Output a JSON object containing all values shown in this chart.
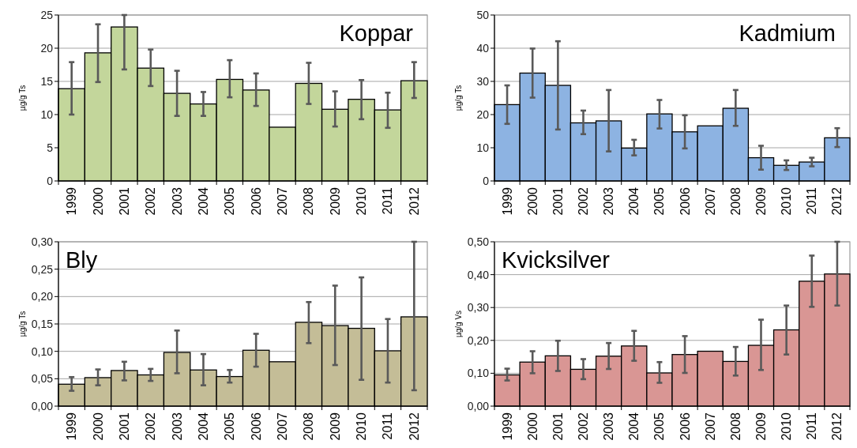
{
  "chart_data": [
    {
      "type": "bar",
      "title": "Koppar",
      "ylabel": "µg/g Ts",
      "categories": [
        "1999",
        "2000",
        "2001",
        "2002",
        "2003",
        "2004",
        "2005",
        "2006",
        "2007",
        "2008",
        "2009",
        "2010",
        "2011",
        "2012"
      ],
      "values": [
        13.9,
        19.3,
        23.2,
        17.0,
        13.2,
        11.6,
        15.3,
        13.7,
        8.1,
        14.7,
        10.8,
        12.3,
        10.7,
        15.1
      ],
      "errors": [
        [
          10.0,
          17.9
        ],
        [
          14.9,
          23.6
        ],
        [
          16.8,
          25
        ],
        [
          14.3,
          19.8
        ],
        [
          9.8,
          16.6
        ],
        [
          9.8,
          13.4
        ],
        [
          12.6,
          18.2
        ],
        [
          11.3,
          16.2
        ],
        null,
        [
          11.6,
          17.8
        ],
        [
          8.2,
          13.5
        ],
        [
          9.3,
          15.2
        ],
        [
          8.0,
          13.3
        ],
        [
          12.5,
          17.9
        ]
      ],
      "color": "#c3d69b",
      "ylim": [
        0,
        25
      ],
      "yticks": [
        0,
        5,
        10,
        15,
        20,
        25
      ],
      "grid": "y"
    },
    {
      "type": "bar",
      "title": "Kadmium",
      "ylabel": "µg/g Ts",
      "categories": [
        "1999",
        "2000",
        "2001",
        "2002",
        "2003",
        "2004",
        "2005",
        "2006",
        "2007",
        "2008",
        "2009",
        "2010",
        "2011",
        "2012"
      ],
      "values": [
        23.0,
        32.5,
        28.8,
        17.5,
        18.1,
        9.9,
        20.2,
        14.8,
        16.6,
        21.9,
        7.0,
        4.7,
        5.7,
        13.0
      ],
      "errors": [
        [
          17.2,
          28.8
        ],
        [
          25.1,
          39.9
        ],
        [
          15.5,
          42.1
        ],
        [
          14.1,
          21.2
        ],
        [
          8.9,
          27.4
        ],
        [
          7.7,
          12.4
        ],
        [
          15.8,
          24.4
        ],
        [
          9.8,
          19.8
        ],
        null,
        [
          16.6,
          27.4
        ],
        [
          3.4,
          10.6
        ],
        [
          3.3,
          6.2
        ],
        [
          4.4,
          7.0
        ],
        [
          10.2,
          15.9
        ]
      ],
      "color": "#8db3e2",
      "ylim": [
        0,
        50
      ],
      "yticks": [
        0,
        10,
        20,
        30,
        40,
        50
      ],
      "grid": "y"
    },
    {
      "type": "bar",
      "title": "Bly",
      "ylabel": "µg/g Ts",
      "categories": [
        "1999",
        "2000",
        "2001",
        "2002",
        "2003",
        "2004",
        "2005",
        "2006",
        "2007",
        "2008",
        "2009",
        "2010",
        "2011",
        "2012"
      ],
      "values": [
        0.04,
        0.052,
        0.065,
        0.057,
        0.098,
        0.066,
        0.054,
        0.102,
        0.081,
        0.153,
        0.147,
        0.142,
        0.101,
        0.163
      ],
      "errors": [
        [
          0.028,
          0.053
        ],
        [
          0.038,
          0.067
        ],
        [
          0.047,
          0.081
        ],
        [
          0.046,
          0.068
        ],
        [
          0.06,
          0.138
        ],
        [
          0.038,
          0.095
        ],
        [
          0.043,
          0.066
        ],
        [
          0.072,
          0.132
        ],
        null,
        [
          0.115,
          0.19
        ],
        [
          0.075,
          0.22
        ],
        [
          0.048,
          0.235
        ],
        [
          0.043,
          0.159
        ],
        [
          0.029,
          0.3
        ]
      ],
      "color": "#c4bd97",
      "ylim": [
        0,
        0.3
      ],
      "yticks": [
        {
          "value": 0,
          "label": "0,00"
        },
        {
          "value": 0.05,
          "label": "0,05"
        },
        {
          "value": 0.1,
          "label": "0,10"
        },
        {
          "value": 0.15,
          "label": "0,15"
        },
        {
          "value": 0.2,
          "label": "0,20"
        },
        {
          "value": 0.25,
          "label": "0,25"
        },
        {
          "value": 0.3,
          "label": "0,30"
        }
      ],
      "grid": "y"
    },
    {
      "type": "bar",
      "title": "Kvicksilver",
      "ylabel": "µg/g Vs",
      "categories": [
        "1999",
        "2000",
        "2001",
        "2002",
        "2003",
        "2004",
        "2005",
        "2006",
        "2007",
        "2008",
        "2009",
        "2010",
        "2011",
        "2012"
      ],
      "values": [
        0.095,
        0.134,
        0.153,
        0.112,
        0.152,
        0.183,
        0.101,
        0.157,
        0.167,
        0.136,
        0.185,
        0.232,
        0.38,
        0.402
      ],
      "errors": [
        [
          0.078,
          0.114
        ],
        [
          0.1,
          0.167
        ],
        [
          0.107,
          0.199
        ],
        [
          0.082,
          0.143
        ],
        [
          0.113,
          0.192
        ],
        [
          0.138,
          0.229
        ],
        [
          0.071,
          0.134
        ],
        [
          0.101,
          0.213
        ],
        null,
        [
          0.093,
          0.18
        ],
        [
          0.11,
          0.263
        ],
        [
          0.157,
          0.306
        ],
        [
          0.302,
          0.458
        ],
        [
          0.306,
          0.5
        ]
      ],
      "color": "#d99694",
      "ylim": [
        0,
        0.5
      ],
      "yticks": [
        {
          "value": 0,
          "label": "0,00"
        },
        {
          "value": 0.1,
          "label": "0,10"
        },
        {
          "value": 0.2,
          "label": "0,20"
        },
        {
          "value": 0.3,
          "label": "0,30"
        },
        {
          "value": 0.4,
          "label": "0,40"
        },
        {
          "value": 0.5,
          "label": "0,50"
        }
      ],
      "grid": "y"
    }
  ]
}
